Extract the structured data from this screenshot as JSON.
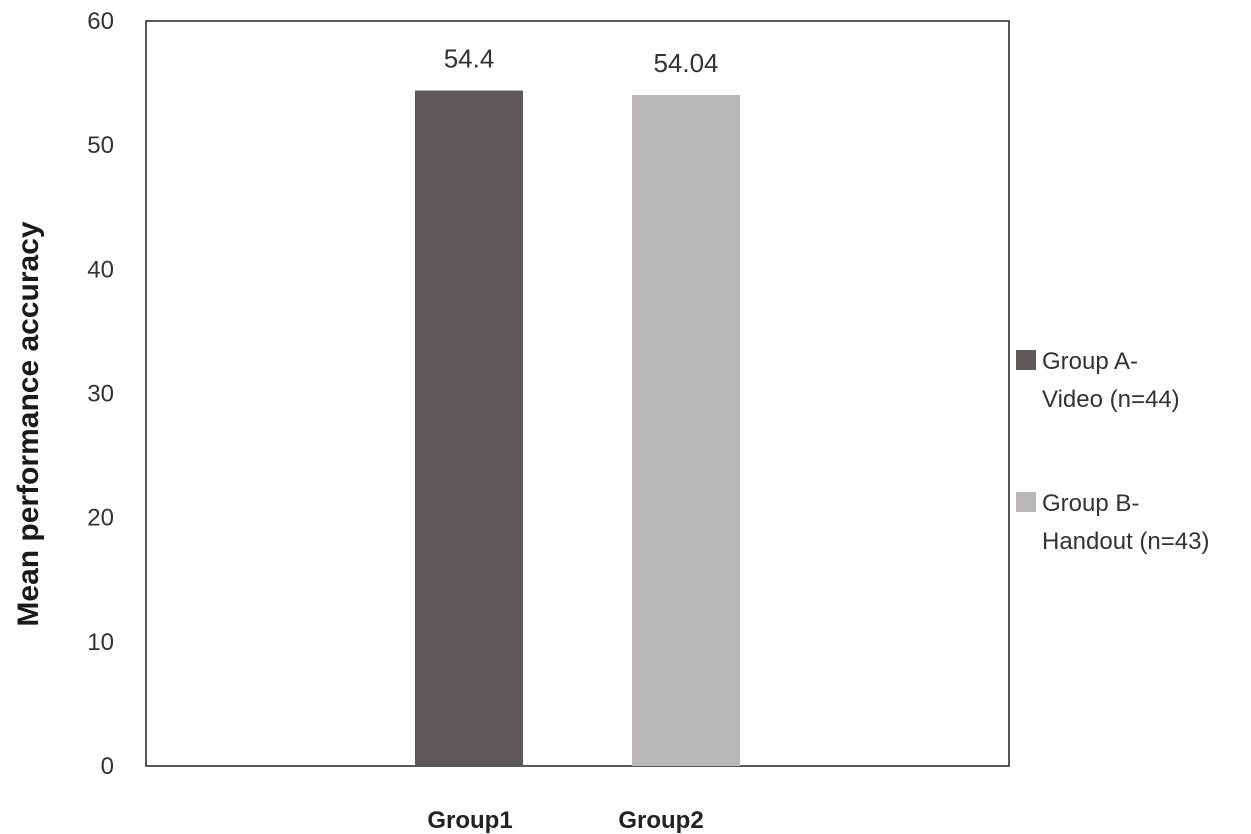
{
  "chart_data": {
    "type": "bar",
    "title": "",
    "xlabel": "",
    "ylabel": "Mean performance accuracy",
    "ylim": [
      0,
      60
    ],
    "yticks": [
      0,
      10,
      20,
      30,
      40,
      50,
      60
    ],
    "categories": [
      "Group1",
      "Group2"
    ],
    "series": [
      {
        "name": "Group A- Video (n=44)",
        "name_lines": [
          "Group A-",
          "Video (n=44)"
        ],
        "color": "#5e5957",
        "category": "Group1",
        "value": 54.4,
        "label": "54.4"
      },
      {
        "name": "Group B- Handout (n=43)",
        "name_lines": [
          "Group B-",
          "Handout (n=43)"
        ],
        "color": "#bbb7b6",
        "category": "Group2",
        "value": 54.04,
        "label": "54.04"
      }
    ],
    "grid": false,
    "legend_position": "right"
  }
}
